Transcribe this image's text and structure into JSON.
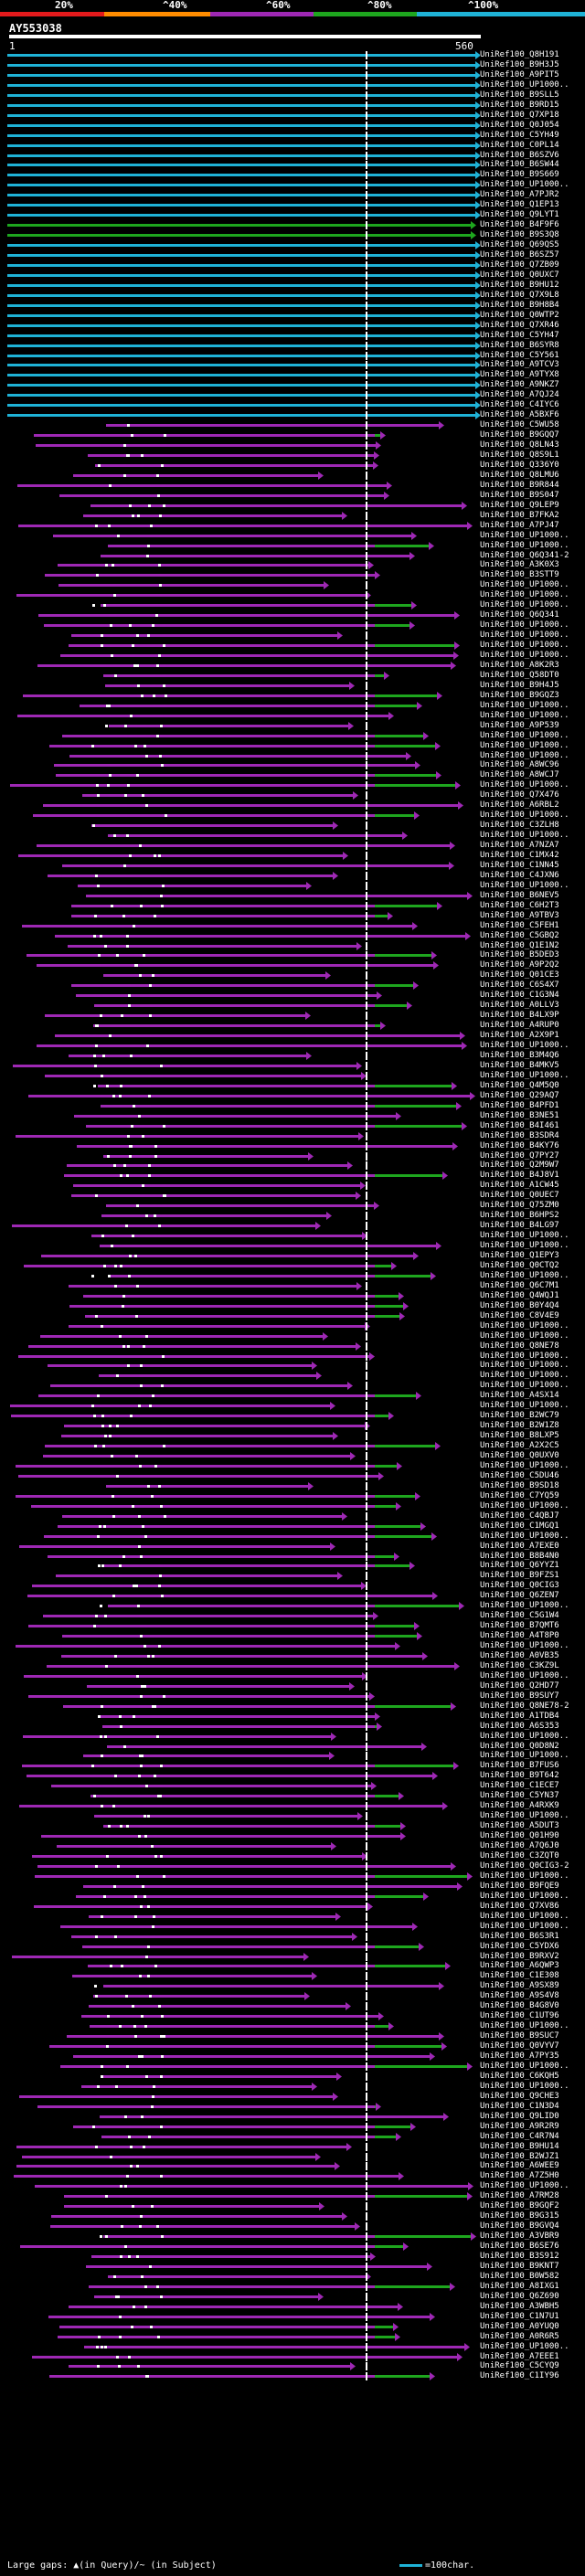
{
  "header": {
    "percent_labels": [
      "20%",
      "^40%",
      "^60%",
      "^80%",
      "^100%"
    ],
    "colors": {
      "c20": "#e31a1c",
      "c40": "#ff8c00",
      "c60": "#9e28b4",
      "c80": "#1ea61e",
      "c100": "#1fb2d6"
    }
  },
  "query": {
    "id": "AY553038",
    "ruler_start": "1",
    "ruler_end": "560"
  },
  "hits": [
    {
      "label": "UniRef100_Q8H191",
      "color": "cyan"
    },
    {
      "label": "UniRef100_B9H3J5",
      "color": "cyan"
    },
    {
      "label": "UniRef100_A9PIT5",
      "color": "cyan"
    },
    {
      "label": "UniRef100_UP1000..",
      "color": "cyan"
    },
    {
      "label": "UniRef100_B9SLL5",
      "color": "cyan"
    },
    {
      "label": "UniRef100_B9RD15",
      "color": "cyan"
    },
    {
      "label": "UniRef100_Q7XP18",
      "color": "cyan"
    },
    {
      "label": "UniRef100_Q0J054",
      "color": "cyan"
    },
    {
      "label": "UniRef100_C5YH49",
      "color": "cyan"
    },
    {
      "label": "UniRef100_C0PL14",
      "color": "cyan"
    },
    {
      "label": "UniRef100_B6SZV6",
      "color": "cyan"
    },
    {
      "label": "UniRef100_B6SW44",
      "color": "cyan"
    },
    {
      "label": "UniRef100_B9S669",
      "color": "cyan"
    },
    {
      "label": "UniRef100_UP1000..",
      "color": "cyan"
    },
    {
      "label": "UniRef100_A7PJR2",
      "color": "cyan"
    },
    {
      "label": "UniRef100_Q1EP13",
      "color": "cyan"
    },
    {
      "label": "UniRef100_Q9LYT1",
      "color": "cyan"
    },
    {
      "label": "UniRef100_B4F9F6",
      "color": "green"
    },
    {
      "label": "UniRef100_B9S3Q8",
      "color": "green"
    },
    {
      "label": "UniRef100_Q69QS5",
      "color": "cyan"
    },
    {
      "label": "UniRef100_B6SZ57",
      "color": "cyan"
    },
    {
      "label": "UniRef100_Q7ZB09",
      "color": "cyan"
    },
    {
      "label": "UniRef100_Q0UXC7",
      "color": "cyan"
    },
    {
      "label": "UniRef100_B9HU12",
      "color": "cyan"
    },
    {
      "label": "UniRef100_Q7X9L8",
      "color": "cyan"
    },
    {
      "label": "UniRef100_B9H8B4",
      "color": "cyan"
    },
    {
      "label": "UniRef100_Q0WTP2",
      "color": "cyan"
    },
    {
      "label": "UniRef100_Q7XR46",
      "color": "cyan"
    },
    {
      "label": "UniRef100_C5YH47",
      "color": "cyan"
    },
    {
      "label": "UniRef100_B6SYR8",
      "color": "cyan"
    },
    {
      "label": "UniRef100_C5Y561",
      "color": "cyan"
    },
    {
      "label": "UniRef100_A9TCV3",
      "color": "cyan"
    },
    {
      "label": "UniRef100_A9TYX8",
      "color": "cyan"
    },
    {
      "label": "UniRef100_A9NKZ7",
      "color": "cyan"
    },
    {
      "label": "UniRef100_A7QJ24",
      "color": "cyan"
    },
    {
      "label": "UniRef100_C4IYC6",
      "color": "cyan"
    },
    {
      "label": "UniRef100_A5BXF6",
      "color": "cyan"
    },
    {
      "label": "UniRef100_C5WU58",
      "color": "magenta"
    },
    {
      "label": "UniRef100_B9GQQ7",
      "color": "magenta"
    },
    {
      "label": "UniRef100_Q8LN43",
      "color": "magenta"
    },
    {
      "label": "UniRef100_Q8S9L1",
      "color": "magenta"
    },
    {
      "label": "UniRef100_Q336Y0",
      "color": "magenta"
    },
    {
      "label": "UniRef100_Q8LMU6",
      "color": "magenta"
    },
    {
      "label": "UniRef100_B9R844",
      "color": "magenta"
    },
    {
      "label": "UniRef100_B9S047",
      "color": "magenta"
    },
    {
      "label": "UniRef100_Q9LEP9",
      "color": "magenta"
    },
    {
      "label": "UniRef100_B7FKA2",
      "color": "magenta"
    },
    {
      "label": "UniRef100_A7PJ47",
      "color": "magenta"
    },
    {
      "label": "UniRef100_UP1000..",
      "color": "magenta"
    },
    {
      "label": "UniRef100_UP1000..",
      "color": "magenta"
    },
    {
      "label": "UniRef100_Q6Q341-2",
      "color": "magenta"
    },
    {
      "label": "UniRef100_A3K0X3",
      "color": "magenta"
    },
    {
      "label": "UniRef100_B3STT9",
      "color": "magenta"
    },
    {
      "label": "UniRef100_UP1000..",
      "color": "magenta"
    },
    {
      "label": "UniRef100_UP1000..",
      "color": "magenta"
    },
    {
      "label": "UniRef100_UP1000..",
      "color": "magenta"
    },
    {
      "label": "UniRef100_Q6Q341",
      "color": "magenta"
    },
    {
      "label": "UniRef100_UP1000..",
      "color": "magenta"
    },
    {
      "label": "UniRef100_UP1000..",
      "color": "magenta"
    },
    {
      "label": "UniRef100_UP1000..",
      "color": "magenta"
    },
    {
      "label": "UniRef100_UP1000..",
      "color": "magenta"
    },
    {
      "label": "UniRef100_A8K2R3",
      "color": "magenta"
    },
    {
      "label": "UniRef100_Q58DT0",
      "color": "magenta"
    },
    {
      "label": "UniRef100_B9H4J5",
      "color": "magenta"
    },
    {
      "label": "UniRef100_B9GQZ3",
      "color": "magenta"
    },
    {
      "label": "UniRef100_UP1000..",
      "color": "magenta"
    },
    {
      "label": "UniRef100_UP1000..",
      "color": "magenta"
    },
    {
      "label": "UniRef100_A9P539",
      "color": "magenta"
    },
    {
      "label": "UniRef100_UP1000..",
      "color": "magenta"
    },
    {
      "label": "UniRef100_UP1000..",
      "color": "magenta"
    },
    {
      "label": "UniRef100_UP1000..",
      "color": "magenta"
    },
    {
      "label": "UniRef100_A8WC96",
      "color": "magenta"
    },
    {
      "label": "UniRef100_A8WCJ7",
      "color": "magenta"
    },
    {
      "label": "UniRef100_UP1000..",
      "color": "magenta"
    },
    {
      "label": "UniRef100_Q7X476",
      "color": "magenta"
    },
    {
      "label": "UniRef100_A6RBL2",
      "color": "magenta"
    },
    {
      "label": "UniRef100_UP1000..",
      "color": "magenta"
    },
    {
      "label": "UniRef100_C3ZLH8",
      "color": "magenta"
    },
    {
      "label": "UniRef100_UP1000..",
      "color": "magenta"
    },
    {
      "label": "UniRef100_A7NZA7",
      "color": "magenta"
    },
    {
      "label": "UniRef100_C1MX42",
      "color": "magenta"
    },
    {
      "label": "UniRef100_C1NN45",
      "color": "magenta"
    },
    {
      "label": "UniRef100_C4JXN6",
      "color": "magenta"
    },
    {
      "label": "UniRef100_UP1000..",
      "color": "magenta"
    },
    {
      "label": "UniRef100_B6NEV5",
      "color": "magenta"
    },
    {
      "label": "UniRef100_C6H2T3",
      "color": "magenta"
    },
    {
      "label": "UniRef100_A9TBV3",
      "color": "magenta"
    },
    {
      "label": "UniRef100_C5FEH1",
      "color": "magenta"
    },
    {
      "label": "UniRef100_C5GBQ2",
      "color": "magenta"
    },
    {
      "label": "UniRef100_Q1E1N2",
      "color": "magenta"
    },
    {
      "label": "UniRef100_B5DED3",
      "color": "magenta"
    },
    {
      "label": "UniRef100_A9P2Q2",
      "color": "magenta"
    },
    {
      "label": "UniRef100_Q01CE3",
      "color": "magenta"
    },
    {
      "label": "UniRef100_C6S4X7",
      "color": "magenta"
    },
    {
      "label": "UniRef100_C1G3N4",
      "color": "magenta"
    },
    {
      "label": "UniRef100_A0LLV3",
      "color": "magenta"
    },
    {
      "label": "UniRef100_B4LX9P",
      "color": "magenta"
    },
    {
      "label": "UniRef100_A4RUP0",
      "color": "magenta"
    },
    {
      "label": "UniRef100_A2X9P1",
      "color": "magenta"
    },
    {
      "label": "UniRef100_UP1000..",
      "color": "magenta"
    },
    {
      "label": "UniRef100_B3M4Q6",
      "color": "magenta"
    },
    {
      "label": "UniRef100_B4MKV5",
      "color": "magenta"
    },
    {
      "label": "UniRef100_UP1000..",
      "color": "magenta"
    },
    {
      "label": "UniRef100_Q4M5Q0",
      "color": "magenta"
    },
    {
      "label": "UniRef100_Q29AQ7",
      "color": "magenta"
    },
    {
      "label": "UniRef100_B4PFD1",
      "color": "magenta"
    },
    {
      "label": "UniRef100_B3NE51",
      "color": "magenta"
    },
    {
      "label": "UniRef100_B4I461",
      "color": "magenta"
    },
    {
      "label": "UniRef100_B3SDR4",
      "color": "magenta"
    },
    {
      "label": "UniRef100_B4KY76",
      "color": "magenta"
    },
    {
      "label": "UniRef100_Q7PY27",
      "color": "magenta"
    },
    {
      "label": "UniRef100_Q2M9W7",
      "color": "magenta"
    },
    {
      "label": "UniRef100_B4J8V1",
      "color": "magenta"
    },
    {
      "label": "UniRef100_A1CW45",
      "color": "magenta"
    },
    {
      "label": "UniRef100_Q0UEC7",
      "color": "magenta"
    },
    {
      "label": "UniRef100_Q75ZM0",
      "color": "magenta"
    },
    {
      "label": "UniRef100_B6HPS2",
      "color": "magenta"
    },
    {
      "label": "UniRef100_B4LG97",
      "color": "magenta"
    },
    {
      "label": "UniRef100_UP1000..",
      "color": "magenta"
    },
    {
      "label": "UniRef100_UP1000..",
      "color": "magenta"
    },
    {
      "label": "UniRef100_Q1EPY3",
      "color": "magenta"
    },
    {
      "label": "UniRef100_Q0CTQ2",
      "color": "magenta"
    },
    {
      "label": "UniRef100_UP1000..",
      "color": "magenta"
    },
    {
      "label": "UniRef100_Q6C7M1",
      "color": "magenta"
    },
    {
      "label": "UniRef100_Q4WQJ1",
      "color": "magenta"
    },
    {
      "label": "UniRef100_B0Y4Q4",
      "color": "magenta"
    },
    {
      "label": "UniRef100_C8V4E9",
      "color": "magenta"
    },
    {
      "label": "UniRef100_UP1000..",
      "color": "magenta"
    },
    {
      "label": "UniRef100_UP1000..",
      "color": "magenta"
    },
    {
      "label": "UniRef100_Q8NE78",
      "color": "magenta"
    },
    {
      "label": "UniRef100_UP1000..",
      "color": "magenta"
    },
    {
      "label": "UniRef100_UP1000..",
      "color": "magenta"
    },
    {
      "label": "UniRef100_UP1000..",
      "color": "magenta"
    },
    {
      "label": "UniRef100_UP1000..",
      "color": "magenta"
    },
    {
      "label": "UniRef100_A4SX14",
      "color": "magenta"
    },
    {
      "label": "UniRef100_UP1000..",
      "color": "magenta"
    },
    {
      "label": "UniRef100_B2WC79",
      "color": "magenta"
    },
    {
      "label": "UniRef100_B2W1Z8",
      "color": "magenta"
    },
    {
      "label": "UniRef100_B8LXP5",
      "color": "magenta"
    },
    {
      "label": "UniRef100_A2X2C5",
      "color": "magenta"
    },
    {
      "label": "UniRef100_Q0UXV0",
      "color": "magenta"
    },
    {
      "label": "UniRef100_UP1000..",
      "color": "magenta"
    },
    {
      "label": "UniRef100_C5DU46",
      "color": "magenta"
    },
    {
      "label": "UniRef100_B9SD18",
      "color": "magenta"
    },
    {
      "label": "UniRef100_C7YQ59",
      "color": "magenta"
    },
    {
      "label": "UniRef100_UP1000..",
      "color": "magenta"
    },
    {
      "label": "UniRef100_C4QBJ7",
      "color": "magenta"
    },
    {
      "label": "UniRef100_C1MGQ1",
      "color": "magenta"
    },
    {
      "label": "UniRef100_UP1000..",
      "color": "magenta"
    },
    {
      "label": "UniRef100_A7EXE0",
      "color": "magenta"
    },
    {
      "label": "UniRef100_B8B4N0",
      "color": "magenta"
    },
    {
      "label": "UniRef100_Q6YYZ1",
      "color": "magenta"
    },
    {
      "label": "UniRef100_B9FZS1",
      "color": "magenta"
    },
    {
      "label": "UniRef100_Q0CIG3",
      "color": "magenta"
    },
    {
      "label": "UniRef100_Q6ZEN7",
      "color": "magenta"
    },
    {
      "label": "UniRef100_UP1000..",
      "color": "magenta"
    },
    {
      "label": "UniRef100_C5G1W4",
      "color": "magenta"
    },
    {
      "label": "UniRef100_B7QMT6",
      "color": "magenta"
    },
    {
      "label": "UniRef100_A4T8P0",
      "color": "magenta"
    },
    {
      "label": "UniRef100_UP1000..",
      "color": "magenta"
    },
    {
      "label": "UniRef100_A0VB35",
      "color": "magenta"
    },
    {
      "label": "UniRef100_C3KZ9L",
      "color": "magenta"
    },
    {
      "label": "UniRef100_UP1000..",
      "color": "magenta"
    },
    {
      "label": "UniRef100_Q2HD77",
      "color": "magenta"
    },
    {
      "label": "UniRef100_B9SUY7",
      "color": "magenta"
    },
    {
      "label": "UniRef100_Q8NE78-2",
      "color": "magenta"
    },
    {
      "label": "UniRef100_A1TDB4",
      "color": "magenta"
    },
    {
      "label": "UniRef100_A6S353",
      "color": "magenta"
    },
    {
      "label": "UniRef100_UP1000..",
      "color": "magenta"
    },
    {
      "label": "UniRef100_Q0D8N2",
      "color": "magenta"
    },
    {
      "label": "UniRef100_UP1000..",
      "color": "magenta"
    },
    {
      "label": "UniRef100_B7FUS6",
      "color": "magenta"
    },
    {
      "label": "UniRef100_B9T642",
      "color": "magenta"
    },
    {
      "label": "UniRef100_C1ECE7",
      "color": "magenta"
    },
    {
      "label": "UniRef100_C5YN37",
      "color": "magenta"
    },
    {
      "label": "UniRef100_A4RXK9",
      "color": "magenta"
    },
    {
      "label": "UniRef100_UP1000..",
      "color": "magenta"
    },
    {
      "label": "UniRef100_A5DUT3",
      "color": "magenta"
    },
    {
      "label": "UniRef100_Q01H90",
      "color": "magenta"
    },
    {
      "label": "UniRef100_A7Q6J0",
      "color": "magenta"
    },
    {
      "label": "UniRef100_C3ZQT0",
      "color": "magenta"
    },
    {
      "label": "UniRef100_Q0CIG3-2",
      "color": "magenta"
    },
    {
      "label": "UniRef100_UP1000..",
      "color": "magenta"
    },
    {
      "label": "UniRef100_B9FQE9",
      "color": "magenta"
    },
    {
      "label": "UniRef100_UP1000..",
      "color": "magenta"
    },
    {
      "label": "UniRef100_Q7XV86",
      "color": "magenta"
    },
    {
      "label": "UniRef100_UP1000..",
      "color": "magenta"
    },
    {
      "label": "UniRef100_UP1000..",
      "color": "magenta"
    },
    {
      "label": "UniRef100_B6S3R1",
      "color": "magenta"
    },
    {
      "label": "UniRef100_C5YDX6",
      "color": "magenta"
    },
    {
      "label": "UniRef100_B9RXV2",
      "color": "magenta"
    },
    {
      "label": "UniRef100_A6QWP3",
      "color": "magenta"
    },
    {
      "label": "UniRef100_C1E308",
      "color": "magenta"
    },
    {
      "label": "UniRef100_A9SX89",
      "color": "magenta"
    },
    {
      "label": "UniRef100_A9S4V8",
      "color": "magenta"
    },
    {
      "label": "UniRef100_B4G8V0",
      "color": "magenta"
    },
    {
      "label": "UniRef100_C1UT96",
      "color": "magenta"
    },
    {
      "label": "UniRef100_UP1000..",
      "color": "magenta"
    },
    {
      "label": "UniRef100_B9SUC7",
      "color": "magenta"
    },
    {
      "label": "UniRef100_Q0VYV7",
      "color": "magenta"
    },
    {
      "label": "UniRef100_A7PY35",
      "color": "magenta"
    },
    {
      "label": "UniRef100_UP1000..",
      "color": "magenta"
    },
    {
      "label": "UniRef100_C6KQH5",
      "color": "magenta"
    },
    {
      "label": "UniRef100_UP1000..",
      "color": "magenta"
    },
    {
      "label": "UniRef100_Q9CHE3",
      "color": "magenta"
    },
    {
      "label": "UniRef100_C1N3D4",
      "color": "magenta"
    },
    {
      "label": "UniRef100_Q9LID0",
      "color": "magenta"
    },
    {
      "label": "UniRef100_A9R2R9",
      "color": "magenta"
    },
    {
      "label": "UniRef100_C4R7N4",
      "color": "magenta"
    },
    {
      "label": "UniRef100_B9HU14",
      "color": "magenta"
    },
    {
      "label": "UniRef100_B2WJZ1",
      "color": "magenta"
    },
    {
      "label": "UniRef100_A6WEE9",
      "color": "magenta"
    },
    {
      "label": "UniRef100_A7Z5H0",
      "color": "magenta"
    },
    {
      "label": "UniRef100_UP1000..",
      "color": "magenta"
    },
    {
      "label": "UniRef100_A7RM28",
      "color": "magenta"
    },
    {
      "label": "UniRef100_B9GQF2",
      "color": "magenta"
    },
    {
      "label": "UniRef100_B9G315",
      "color": "magenta"
    },
    {
      "label": "UniRef100_B9GVQ4",
      "color": "magenta"
    },
    {
      "label": "UniRef100_A3VBR9",
      "color": "magenta"
    },
    {
      "label": "UniRef100_B6SE76",
      "color": "magenta"
    },
    {
      "label": "UniRef100_B3S912",
      "color": "magenta"
    },
    {
      "label": "UniRef100_B9KNT7",
      "color": "magenta"
    },
    {
      "label": "UniRef100_B0W582",
      "color": "magenta"
    },
    {
      "label": "UniRef100_A8IXG1",
      "color": "magenta"
    },
    {
      "label": "UniRef100_Q6Z690",
      "color": "magenta"
    },
    {
      "label": "UniRef100_A3WBH5",
      "color": "magenta"
    },
    {
      "label": "UniRef100_C1N7U1",
      "color": "magenta"
    },
    {
      "label": "UniRef100_A0YUQ0",
      "color": "magenta"
    },
    {
      "label": "UniRef100_A0R6R5",
      "color": "magenta"
    },
    {
      "label": "UniRef100_UP1000..",
      "color": "magenta"
    },
    {
      "label": "UniRef100_A7EEE1",
      "color": "magenta"
    },
    {
      "label": "UniRef100_C5CYQ9",
      "color": "magenta"
    },
    {
      "label": "UniRef100_C1IY96",
      "color": "magenta"
    }
  ],
  "legend": {
    "text": "Large gaps: ▲(in Query)/~ (in Subject)",
    "scale": "=100char."
  }
}
